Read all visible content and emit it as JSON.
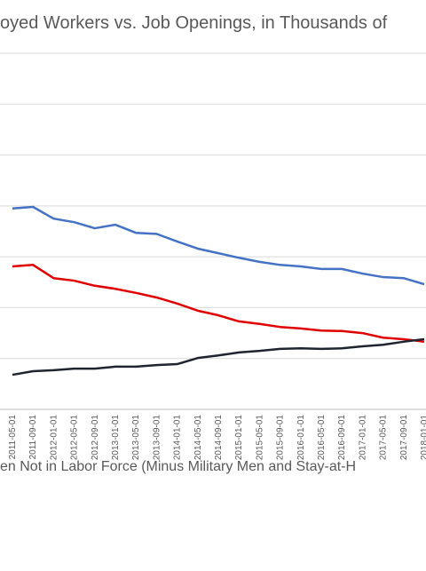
{
  "chart_data": {
    "type": "line",
    "title": "oyed Workers vs. Job Openings, in Thousands of",
    "categories": [
      "2011-05-01",
      "2011-09-01",
      "2012-01-01",
      "2012-05-01",
      "2012-09-01",
      "2013-01-01",
      "2013-05-01",
      "2013-09-01",
      "2014-01-01",
      "2014-05-01",
      "2014-09-01",
      "2015-01-01",
      "2015-05-01",
      "2015-09-01",
      "2016-01-01",
      "2016-05-01",
      "2016-09-01",
      "2017-01-01",
      "2017-05-01",
      "2017-09-01",
      "2018-01-01"
    ],
    "series": [
      {
        "name": "en Not in Labor Force (Minus Military Men and Stay-at-H",
        "color": "#4472c4",
        "values": [
          3.95,
          3.98,
          3.75,
          3.68,
          3.56,
          3.63,
          3.47,
          3.45,
          3.3,
          3.16,
          3.07,
          2.98,
          2.9,
          2.84,
          2.81,
          2.76,
          2.76,
          2.67,
          2.6,
          2.58,
          2.46
        ]
      },
      {
        "color": "#e00000",
        "values": [
          2.81,
          2.84,
          2.58,
          2.53,
          2.43,
          2.37,
          2.29,
          2.2,
          2.08,
          1.94,
          1.85,
          1.73,
          1.68,
          1.62,
          1.59,
          1.55,
          1.54,
          1.5,
          1.41,
          1.38,
          1.33
        ]
      },
      {
        "color": "#1f2430",
        "values": [
          0.68,
          0.75,
          0.77,
          0.8,
          0.8,
          0.84,
          0.84,
          0.87,
          0.89,
          1.01,
          1.06,
          1.12,
          1.15,
          1.19,
          1.2,
          1.19,
          1.2,
          1.24,
          1.27,
          1.33,
          1.38
        ]
      }
    ],
    "ylim": [
      0,
      7
    ],
    "yticks": [
      0,
      1,
      2,
      3,
      4,
      5,
      6,
      7
    ],
    "grid": true,
    "tick_labels": false
  }
}
